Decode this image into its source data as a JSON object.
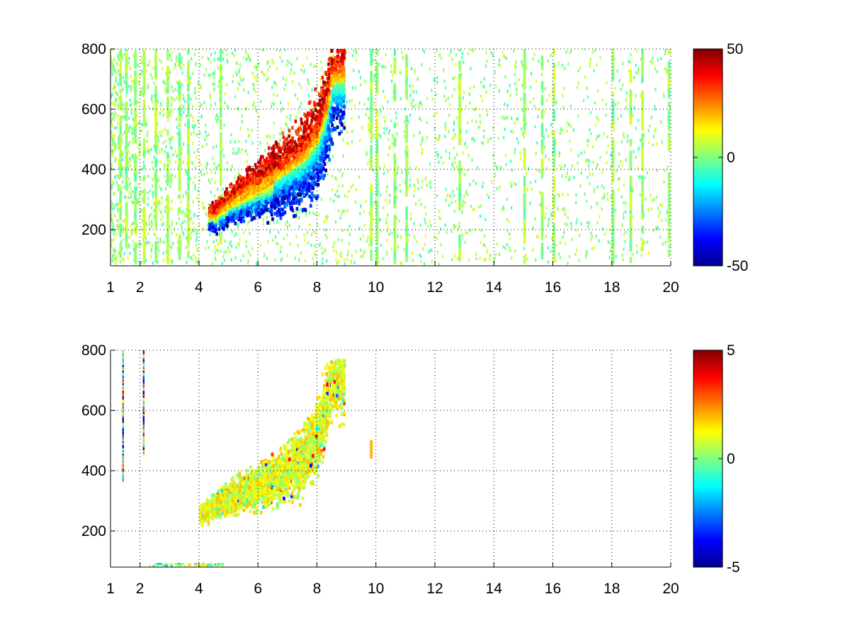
{
  "chart_data": [
    {
      "type": "heatmap",
      "title": "",
      "xlabel": "",
      "ylabel": "",
      "xlim": [
        1,
        20
      ],
      "ylim": [
        80,
        800
      ],
      "x_ticks": [
        1,
        2,
        4,
        6,
        8,
        10,
        12,
        14,
        16,
        18,
        20
      ],
      "y_ticks": [
        200,
        400,
        600,
        800
      ],
      "grid": true,
      "colormap": "jet",
      "colorbar": {
        "min": -50,
        "max": 50,
        "ticks": [
          50,
          0,
          -50
        ]
      },
      "features": {
        "band": [
          {
            "x": 4.5,
            "y": 235
          },
          {
            "x": 5.0,
            "y": 275
          },
          {
            "x": 5.5,
            "y": 305
          },
          {
            "x": 6.0,
            "y": 330
          },
          {
            "x": 6.5,
            "y": 355
          },
          {
            "x": 7.0,
            "y": 385
          },
          {
            "x": 7.5,
            "y": 420
          },
          {
            "x": 8.0,
            "y": 480
          },
          {
            "x": 8.3,
            "y": 570
          },
          {
            "x": 8.5,
            "y": 680
          }
        ],
        "band_sign": "positive above (yellow-red), negative below (blue)",
        "peak_value": 45,
        "trough_value": -45,
        "vertical_streak_x": [
          1.3,
          1.5,
          1.8,
          2.1,
          2.5,
          2.9,
          3.3,
          3.6,
          4.7,
          9.8,
          10.0,
          10.6,
          11.0,
          12.8,
          15.0,
          15.6,
          16.0,
          18.0,
          18.6,
          19.0,
          19.9
        ]
      }
    },
    {
      "type": "heatmap",
      "title": "",
      "xlabel": "",
      "ylabel": "",
      "xlim": [
        1,
        20
      ],
      "ylim": [
        80,
        800
      ],
      "x_ticks": [
        1,
        2,
        4,
        6,
        8,
        10,
        12,
        14,
        16,
        18,
        20
      ],
      "y_ticks": [
        200,
        400,
        600,
        800
      ],
      "grid": true,
      "colormap": "jet",
      "colorbar": {
        "min": -5,
        "max": 5,
        "ticks": [
          5,
          0,
          -5
        ]
      },
      "features": {
        "band": [
          {
            "x": 4.0,
            "y": 245
          },
          {
            "x": 4.5,
            "y": 275
          },
          {
            "x": 5.0,
            "y": 300
          },
          {
            "x": 5.5,
            "y": 320
          },
          {
            "x": 6.0,
            "y": 340
          },
          {
            "x": 6.5,
            "y": 365
          },
          {
            "x": 7.0,
            "y": 395
          },
          {
            "x": 7.5,
            "y": 430
          },
          {
            "x": 8.0,
            "y": 500
          },
          {
            "x": 8.3,
            "y": 600
          },
          {
            "x": 8.5,
            "y": 700
          }
        ],
        "band_value_range": [
          0,
          2
        ],
        "left_streaks": [
          {
            "x": 1.4,
            "y_range": [
              360,
              790
            ]
          },
          {
            "x": 2.1,
            "y_range": [
              450,
              790
            ]
          }
        ],
        "isolated_patch": {
          "x": 9.8,
          "y_range": [
            440,
            490
          ],
          "value": 2
        }
      }
    }
  ]
}
